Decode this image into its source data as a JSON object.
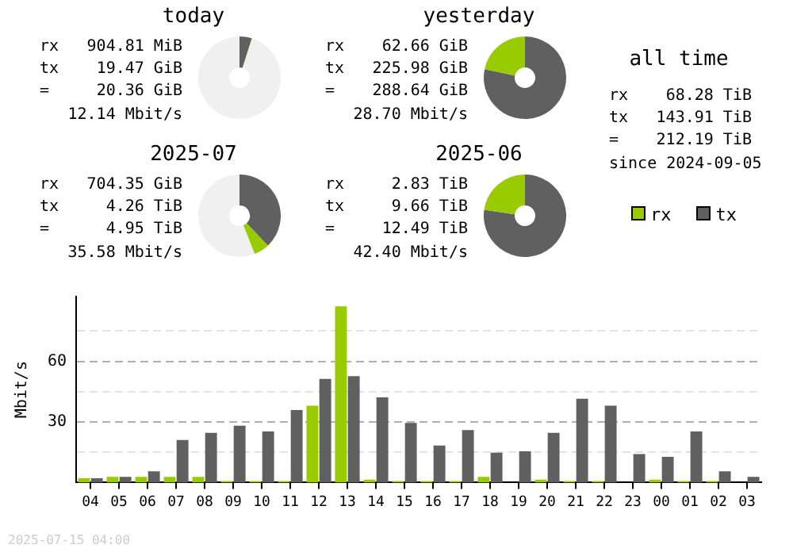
{
  "chart_data": [
    {
      "type": "donut",
      "title": "today",
      "categories": [
        null,
        null,
        null
      ],
      "values": [
        4.8,
        0.2,
        95.0
      ],
      "colors": [
        "#606060",
        "#99cc00",
        "#f0f0f0"
      ],
      "annotations": [
        "rx",
        "904.81 MiB",
        "tx",
        "19.47 GiB",
        "=",
        "20.36 GiB",
        "12.14 Mbit/s"
      ]
    },
    {
      "type": "donut",
      "title": "yesterday",
      "categories": [
        null,
        null
      ],
      "values": [
        78.3,
        21.7
      ],
      "colors": [
        "#606060",
        "#99cc00"
      ],
      "annotations": [
        "rx",
        "62.66 GiB",
        "tx",
        "225.98 GiB",
        "=",
        "288.64 GiB",
        "28.70 Mbit/s"
      ]
    },
    {
      "type": "other",
      "title": "all time",
      "annotations": [
        "rx",
        "68.28 TiB",
        "tx",
        "143.91 TiB",
        "=",
        "212.19 TiB",
        "since 2024-09-05"
      ]
    },
    {
      "type": "donut",
      "title": "2025-07",
      "categories": [
        null,
        null,
        null
      ],
      "values": [
        37.9,
        6.1,
        56.0
      ],
      "colors": [
        "#606060",
        "#99cc00",
        "#f0f0f0"
      ],
      "annotations": [
        "rx",
        "704.35 GiB",
        "tx",
        "4.26 TiB",
        "=",
        "4.95 TiB",
        "35.58 Mbit/s"
      ]
    },
    {
      "type": "donut",
      "title": "2025-06",
      "categories": [
        null,
        null
      ],
      "values": [
        77.3,
        22.7
      ],
      "colors": [
        "#606060",
        "#99cc00"
      ],
      "annotations": [
        "rx",
        "2.83 TiB",
        "tx",
        "9.66 TiB",
        "=",
        "12.49 TiB",
        "42.40 Mbit/s"
      ]
    },
    {
      "type": "bar",
      "ylabel": "Mbit/s",
      "categories": [
        "04",
        "05",
        "06",
        "07",
        "08",
        "09",
        "10",
        "11",
        "12",
        "13",
        "14",
        "15",
        "16",
        "17",
        "18",
        "19",
        "20",
        "21",
        "22",
        "23",
        "00",
        "01",
        "02",
        "03"
      ],
      "series": [
        {
          "name": "rx",
          "color": "#99cc00",
          "values": [
            2.1,
            2.8,
            2.8,
            2.8,
            2.8,
            0.7,
            0.7,
            0.7,
            38.0,
            87.2,
            1.4,
            0.7,
            0.7,
            0.7,
            2.8,
            0,
            1.4,
            0.7,
            0.7,
            0,
            1.4,
            0.7,
            0.7,
            0
          ]
        },
        {
          "name": "tx",
          "color": "#606060",
          "values": [
            2.1,
            2.8,
            5.6,
            21.1,
            24.6,
            28.1,
            25.3,
            35.9,
            51.3,
            52.7,
            42.2,
            29.5,
            18.3,
            26.0,
            14.8,
            15.5,
            24.6,
            41.5,
            38.0,
            14.1,
            12.7,
            25.3,
            5.6,
            2.8
          ]
        }
      ],
      "ylim": [
        0,
        92
      ],
      "yticks": [
        {
          "value": 15,
          "label": null
        },
        30,
        {
          "value": 45,
          "label": null
        },
        60,
        {
          "value": 75,
          "label": null
        }
      ],
      "grid": "y",
      "legend": "top right",
      "annotations": [
        "2025-07-15 04:00"
      ]
    }
  ]
}
